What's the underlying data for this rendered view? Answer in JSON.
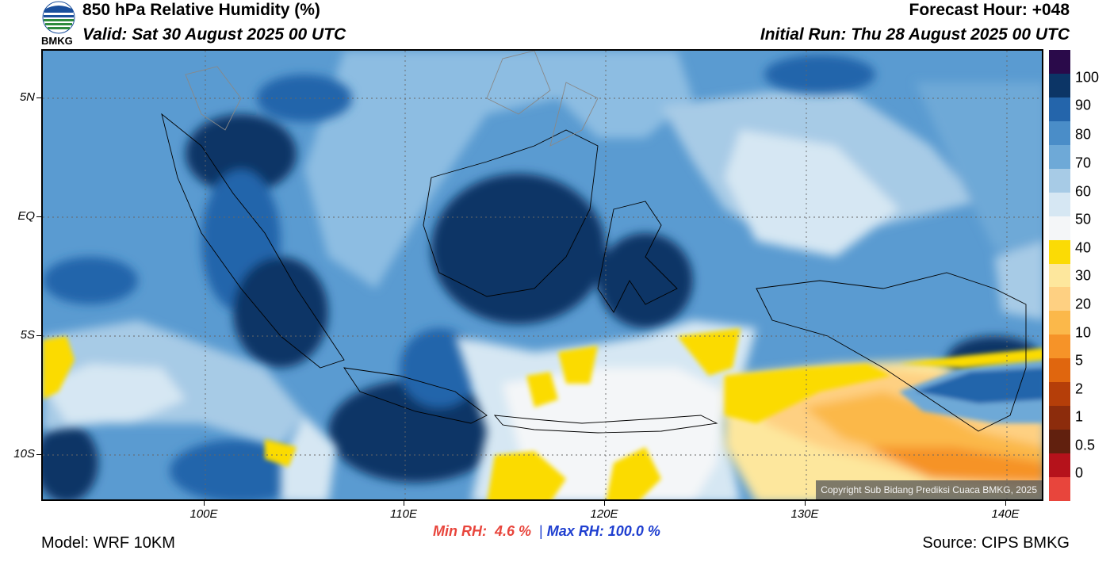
{
  "header": {
    "title": "850 hPa Relative Humidity (%)",
    "valid": "Valid: Sat 30 August 2025 00 UTC",
    "forecast_hour": "Forecast Hour: +048",
    "initial_run": "Initial Run: Thu 28 August 2025 00 UTC",
    "logo_text": "BMKG"
  },
  "map": {
    "lat_labels": [
      "5N",
      "EQ",
      "5S",
      "10S"
    ],
    "lon_labels": [
      "100E",
      "110E",
      "120E",
      "130E",
      "140E"
    ],
    "copyright": "Copyright Sub Bidang Prediksi Cuaca BMKG, 2025"
  },
  "colorbar": {
    "labels": [
      "100",
      "90",
      "80",
      "70",
      "60",
      "50",
      "40",
      "30",
      "20",
      "10",
      "5",
      "2",
      "1",
      "0.5",
      "0"
    ],
    "colors": [
      "#2a0a4a",
      "#0c3566",
      "#2465ab",
      "#4a8dc8",
      "#6ea9d7",
      "#a7cbe6",
      "#d6e7f3",
      "#f4f6f8",
      "#fbdb05",
      "#fde79d",
      "#fed082",
      "#fbb84a",
      "#f69328",
      "#e0660e",
      "#b53e09",
      "#8c2c0c",
      "#61200e",
      "#b5121b",
      "#e8453c"
    ]
  },
  "stats": {
    "min_label": "Min RH:",
    "min_value": "4.6 %",
    "separator": "|",
    "max_label": "Max RH:",
    "max_value": "100.0 %"
  },
  "footer": {
    "model": "Model: WRF 10KM",
    "source": "Source: CIPS BMKG"
  }
}
